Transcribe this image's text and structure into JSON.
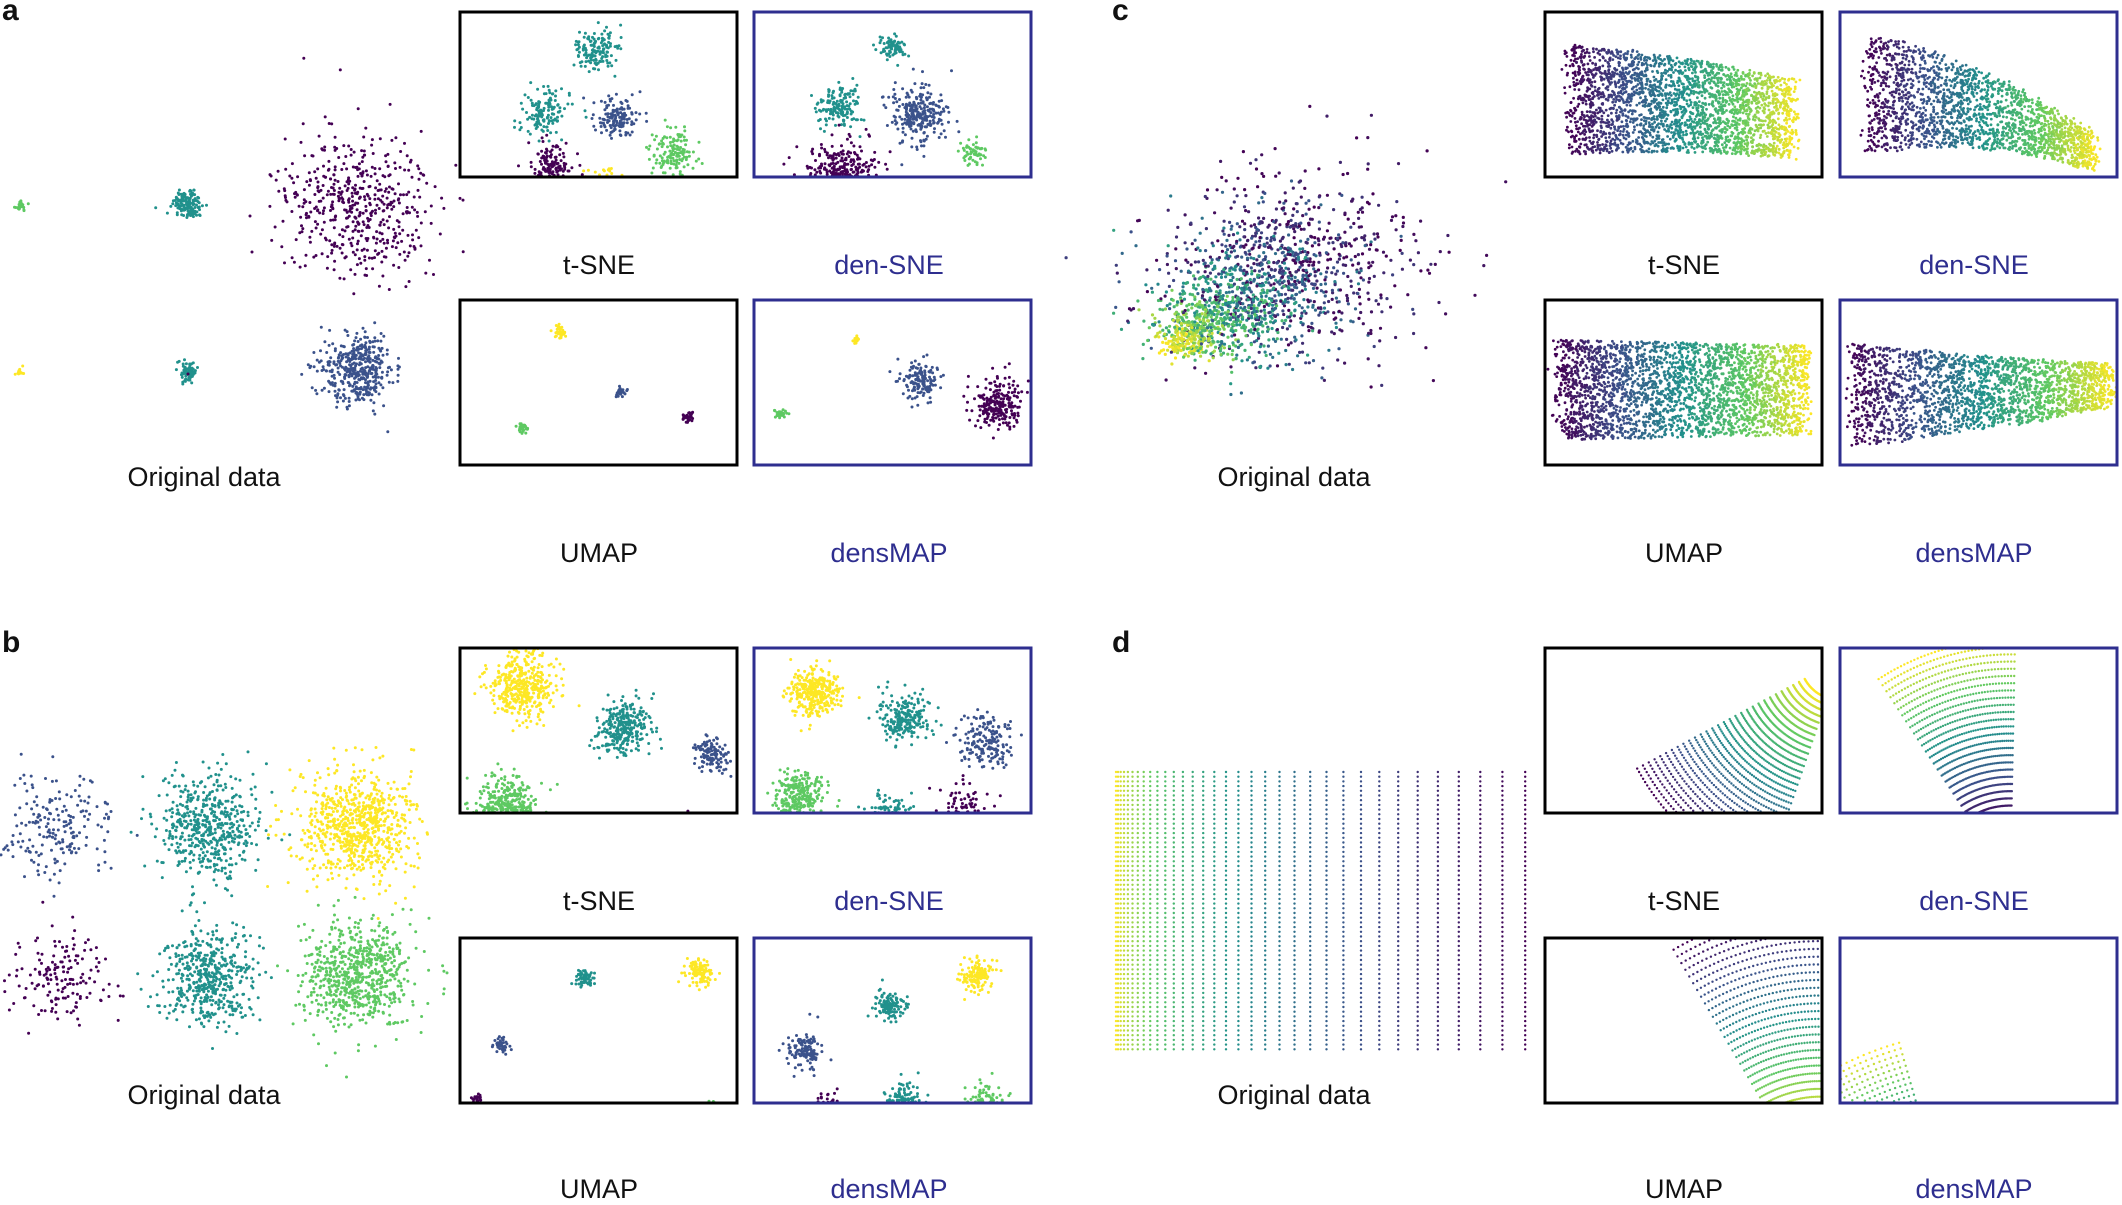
{
  "figure": {
    "panels": [
      {
        "letter": "a",
        "original_label": "Original data",
        "methods": [
          {
            "name": "t-SNE",
            "density_preserving": false
          },
          {
            "name": "den-SNE",
            "density_preserving": true
          },
          {
            "name": "UMAP",
            "density_preserving": false
          },
          {
            "name": "densMAP",
            "density_preserving": true
          }
        ]
      },
      {
        "letter": "b",
        "original_label": "Original data",
        "methods": [
          {
            "name": "t-SNE",
            "density_preserving": false
          },
          {
            "name": "den-SNE",
            "density_preserving": true
          },
          {
            "name": "UMAP",
            "density_preserving": false
          },
          {
            "name": "densMAP",
            "density_preserving": true
          }
        ]
      },
      {
        "letter": "c",
        "original_label": "Original data",
        "methods": [
          {
            "name": "t-SNE",
            "density_preserving": false
          },
          {
            "name": "den-SNE",
            "density_preserving": true
          },
          {
            "name": "UMAP",
            "density_preserving": false
          },
          {
            "name": "densMAP",
            "density_preserving": true
          }
        ]
      },
      {
        "letter": "d",
        "original_label": "Original data",
        "methods": [
          {
            "name": "t-SNE",
            "density_preserving": false
          },
          {
            "name": "den-SNE",
            "density_preserving": true
          },
          {
            "name": "UMAP",
            "density_preserving": false
          },
          {
            "name": "densMAP",
            "density_preserving": true
          }
        ]
      }
    ],
    "colors": {
      "standard_frame": "#000000",
      "density_frame": "#2e2e8f",
      "viridis": [
        "#440154",
        "#3b528b",
        "#21918c",
        "#5ec962",
        "#fde725"
      ]
    }
  }
}
